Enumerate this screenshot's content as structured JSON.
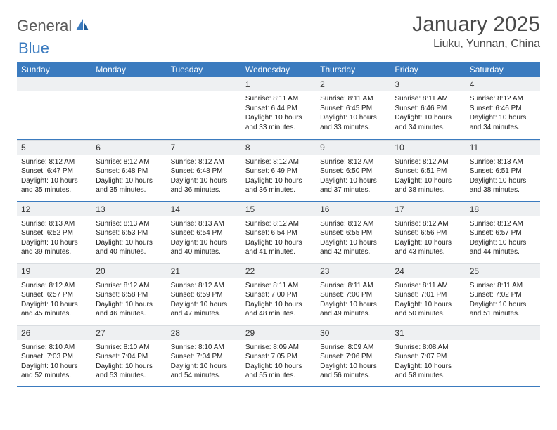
{
  "logo": {
    "text1": "General",
    "text2": "Blue"
  },
  "title": "January 2025",
  "location": "Liuku, Yunnan, China",
  "colors": {
    "header_bg": "#3b7bbf",
    "header_text": "#ffffff",
    "daynum_bg": "#eef0f2",
    "border": "#3b7bbf",
    "text": "#222222",
    "title_text": "#4a4a4a"
  },
  "daysOfWeek": [
    "Sunday",
    "Monday",
    "Tuesday",
    "Wednesday",
    "Thursday",
    "Friday",
    "Saturday"
  ],
  "weeks": [
    [
      {
        "n": "",
        "sr": "",
        "ss": "",
        "dl": ""
      },
      {
        "n": "",
        "sr": "",
        "ss": "",
        "dl": ""
      },
      {
        "n": "",
        "sr": "",
        "ss": "",
        "dl": ""
      },
      {
        "n": "1",
        "sr": "8:11 AM",
        "ss": "6:44 PM",
        "dl": "10 hours and 33 minutes."
      },
      {
        "n": "2",
        "sr": "8:11 AM",
        "ss": "6:45 PM",
        "dl": "10 hours and 33 minutes."
      },
      {
        "n": "3",
        "sr": "8:11 AM",
        "ss": "6:46 PM",
        "dl": "10 hours and 34 minutes."
      },
      {
        "n": "4",
        "sr": "8:12 AM",
        "ss": "6:46 PM",
        "dl": "10 hours and 34 minutes."
      }
    ],
    [
      {
        "n": "5",
        "sr": "8:12 AM",
        "ss": "6:47 PM",
        "dl": "10 hours and 35 minutes."
      },
      {
        "n": "6",
        "sr": "8:12 AM",
        "ss": "6:48 PM",
        "dl": "10 hours and 35 minutes."
      },
      {
        "n": "7",
        "sr": "8:12 AM",
        "ss": "6:48 PM",
        "dl": "10 hours and 36 minutes."
      },
      {
        "n": "8",
        "sr": "8:12 AM",
        "ss": "6:49 PM",
        "dl": "10 hours and 36 minutes."
      },
      {
        "n": "9",
        "sr": "8:12 AM",
        "ss": "6:50 PM",
        "dl": "10 hours and 37 minutes."
      },
      {
        "n": "10",
        "sr": "8:12 AM",
        "ss": "6:51 PM",
        "dl": "10 hours and 38 minutes."
      },
      {
        "n": "11",
        "sr": "8:13 AM",
        "ss": "6:51 PM",
        "dl": "10 hours and 38 minutes."
      }
    ],
    [
      {
        "n": "12",
        "sr": "8:13 AM",
        "ss": "6:52 PM",
        "dl": "10 hours and 39 minutes."
      },
      {
        "n": "13",
        "sr": "8:13 AM",
        "ss": "6:53 PM",
        "dl": "10 hours and 40 minutes."
      },
      {
        "n": "14",
        "sr": "8:13 AM",
        "ss": "6:54 PM",
        "dl": "10 hours and 40 minutes."
      },
      {
        "n": "15",
        "sr": "8:12 AM",
        "ss": "6:54 PM",
        "dl": "10 hours and 41 minutes."
      },
      {
        "n": "16",
        "sr": "8:12 AM",
        "ss": "6:55 PM",
        "dl": "10 hours and 42 minutes."
      },
      {
        "n": "17",
        "sr": "8:12 AM",
        "ss": "6:56 PM",
        "dl": "10 hours and 43 minutes."
      },
      {
        "n": "18",
        "sr": "8:12 AM",
        "ss": "6:57 PM",
        "dl": "10 hours and 44 minutes."
      }
    ],
    [
      {
        "n": "19",
        "sr": "8:12 AM",
        "ss": "6:57 PM",
        "dl": "10 hours and 45 minutes."
      },
      {
        "n": "20",
        "sr": "8:12 AM",
        "ss": "6:58 PM",
        "dl": "10 hours and 46 minutes."
      },
      {
        "n": "21",
        "sr": "8:12 AM",
        "ss": "6:59 PM",
        "dl": "10 hours and 47 minutes."
      },
      {
        "n": "22",
        "sr": "8:11 AM",
        "ss": "7:00 PM",
        "dl": "10 hours and 48 minutes."
      },
      {
        "n": "23",
        "sr": "8:11 AM",
        "ss": "7:00 PM",
        "dl": "10 hours and 49 minutes."
      },
      {
        "n": "24",
        "sr": "8:11 AM",
        "ss": "7:01 PM",
        "dl": "10 hours and 50 minutes."
      },
      {
        "n": "25",
        "sr": "8:11 AM",
        "ss": "7:02 PM",
        "dl": "10 hours and 51 minutes."
      }
    ],
    [
      {
        "n": "26",
        "sr": "8:10 AM",
        "ss": "7:03 PM",
        "dl": "10 hours and 52 minutes."
      },
      {
        "n": "27",
        "sr": "8:10 AM",
        "ss": "7:04 PM",
        "dl": "10 hours and 53 minutes."
      },
      {
        "n": "28",
        "sr": "8:10 AM",
        "ss": "7:04 PM",
        "dl": "10 hours and 54 minutes."
      },
      {
        "n": "29",
        "sr": "8:09 AM",
        "ss": "7:05 PM",
        "dl": "10 hours and 55 minutes."
      },
      {
        "n": "30",
        "sr": "8:09 AM",
        "ss": "7:06 PM",
        "dl": "10 hours and 56 minutes."
      },
      {
        "n": "31",
        "sr": "8:08 AM",
        "ss": "7:07 PM",
        "dl": "10 hours and 58 minutes."
      },
      {
        "n": "",
        "sr": "",
        "ss": "",
        "dl": ""
      }
    ]
  ],
  "labels": {
    "sunrise": "Sunrise: ",
    "sunset": "Sunset: ",
    "daylight": "Daylight: "
  }
}
